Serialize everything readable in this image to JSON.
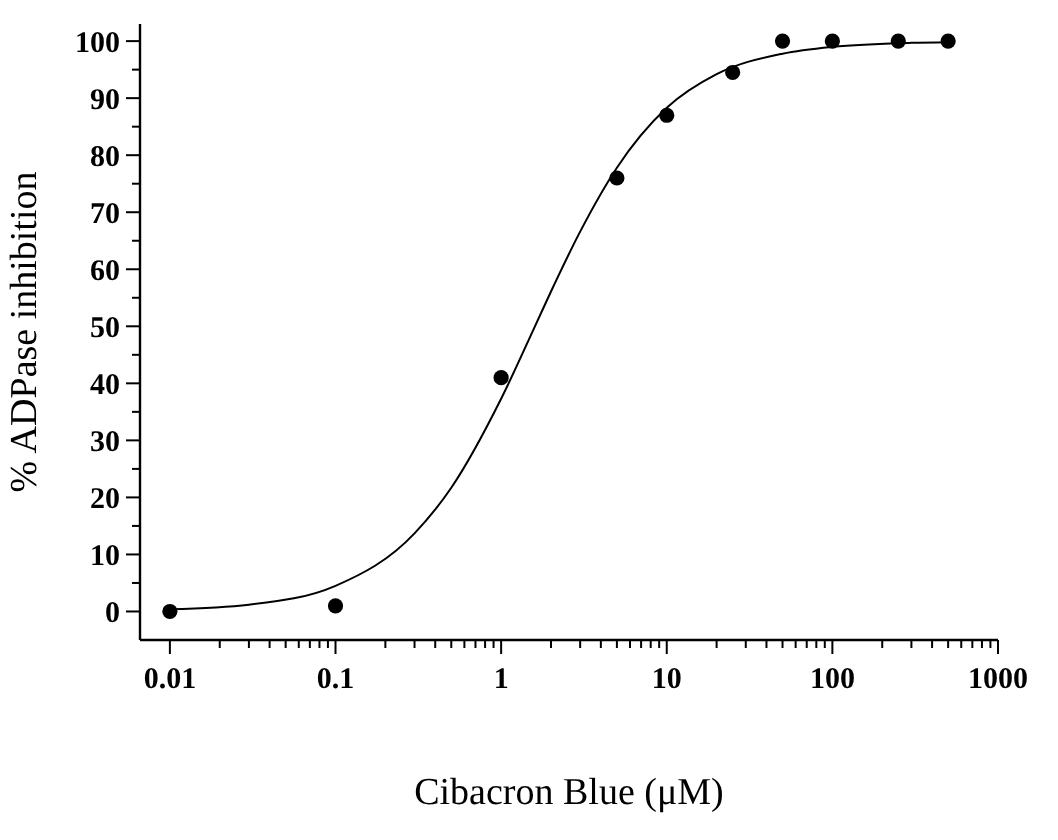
{
  "chart_data": {
    "type": "scatter",
    "xlabel": "Cibacron Blue (μM)",
    "ylabel": "% ADPase inhibition",
    "log": "x",
    "marker": "circle",
    "grid": false,
    "xlim": [
      0.0066,
      1000
    ],
    "ylim": [
      -5,
      103
    ],
    "xticks": [
      0.01,
      {
        "value": 0.02,
        "label": null
      },
      {
        "value": 0.03,
        "label": null
      },
      {
        "value": 0.04,
        "label": null
      },
      {
        "value": 0.05,
        "label": null
      },
      {
        "value": 0.06,
        "label": null
      },
      {
        "value": 0.07,
        "label": null
      },
      {
        "value": 0.08,
        "label": null
      },
      {
        "value": 0.09,
        "label": null
      },
      0.1,
      {
        "value": 0.2,
        "label": null
      },
      {
        "value": 0.3,
        "label": null
      },
      {
        "value": 0.4,
        "label": null
      },
      {
        "value": 0.5,
        "label": null
      },
      {
        "value": 0.6,
        "label": null
      },
      {
        "value": 0.7,
        "label": null
      },
      {
        "value": 0.8,
        "label": null
      },
      {
        "value": 0.9,
        "label": null
      },
      1,
      {
        "value": 2,
        "label": null
      },
      {
        "value": 3,
        "label": null
      },
      {
        "value": 4,
        "label": null
      },
      {
        "value": 5,
        "label": null
      },
      {
        "value": 6,
        "label": null
      },
      {
        "value": 7,
        "label": null
      },
      {
        "value": 8,
        "label": null
      },
      {
        "value": 9,
        "label": null
      },
      10,
      {
        "value": 20,
        "label": null
      },
      {
        "value": 30,
        "label": null
      },
      {
        "value": 40,
        "label": null
      },
      {
        "value": 50,
        "label": null
      },
      {
        "value": 60,
        "label": null
      },
      {
        "value": 70,
        "label": null
      },
      {
        "value": 80,
        "label": null
      },
      {
        "value": 90,
        "label": null
      },
      100,
      {
        "value": 200,
        "label": null
      },
      {
        "value": 300,
        "label": null
      },
      {
        "value": 400,
        "label": null
      },
      {
        "value": 500,
        "label": null
      },
      {
        "value": 600,
        "label": null
      },
      {
        "value": 700,
        "label": null
      },
      {
        "value": 800,
        "label": null
      },
      {
        "value": 900,
        "label": null
      },
      1000
    ],
    "yticks": [
      0,
      {
        "value": 5,
        "label": null
      },
      10,
      {
        "value": 15,
        "label": null
      },
      20,
      {
        "value": 25,
        "label": null
      },
      30,
      {
        "value": 35,
        "label": null
      },
      40,
      {
        "value": 45,
        "label": null
      },
      50,
      {
        "value": 55,
        "label": null
      },
      60,
      {
        "value": 65,
        "label": null
      },
      70,
      {
        "value": 75,
        "label": null
      },
      80,
      {
        "value": 85,
        "label": null
      },
      90,
      {
        "value": 95,
        "label": null
      },
      100
    ],
    "series": [
      {
        "color": "#000000",
        "x": [
          0.01,
          0.1,
          1,
          5,
          10,
          25,
          50,
          100,
          250,
          500
        ],
        "values": [
          0,
          1,
          41,
          76,
          87,
          94.5,
          100,
          100,
          100,
          100
        ]
      },
      {
        "type": "line",
        "color": "#000000",
        "marker": "none",
        "line_style": "solid",
        "x": [
          0.01,
          0.03,
          0.1,
          0.3,
          0.5,
          1,
          1.6,
          2,
          3,
          5,
          10,
          20,
          50,
          100,
          300,
          500
        ],
        "values": [
          0.4,
          1.2,
          4.5,
          13.7,
          21.7,
          37.3,
          50,
          56.1,
          66.6,
          77.8,
          88.3,
          94.2,
          97.8,
          99,
          99.7,
          99.8
        ]
      }
    ]
  }
}
